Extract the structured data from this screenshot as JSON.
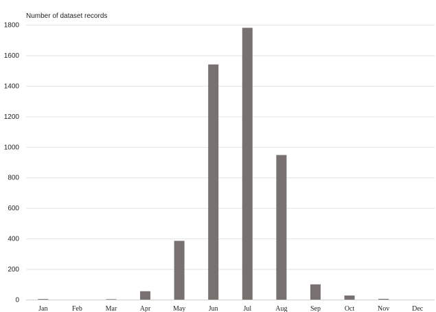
{
  "chart_data": {
    "type": "bar",
    "ylabel": "Number of dataset records",
    "xlabel": "",
    "title": "",
    "categories": [
      "Jan",
      "Feb",
      "Mar",
      "Apr",
      "May",
      "Jun",
      "Jul",
      "Aug",
      "Sep",
      "Oct",
      "Nov",
      "Dec"
    ],
    "values": [
      4,
      0,
      3,
      55,
      385,
      1540,
      1780,
      947,
      100,
      27,
      5,
      0
    ],
    "ylim": [
      0,
      1800
    ],
    "yticks": [
      "0",
      "200",
      "400",
      "600",
      "800",
      "1000",
      "1200",
      "1400",
      "1600",
      "1800"
    ],
    "ytick_values": [
      0,
      200,
      400,
      600,
      800,
      1000,
      1200,
      1400,
      1600,
      1800
    ],
    "grid": true,
    "legend": "none",
    "bar_color": "#787170"
  }
}
